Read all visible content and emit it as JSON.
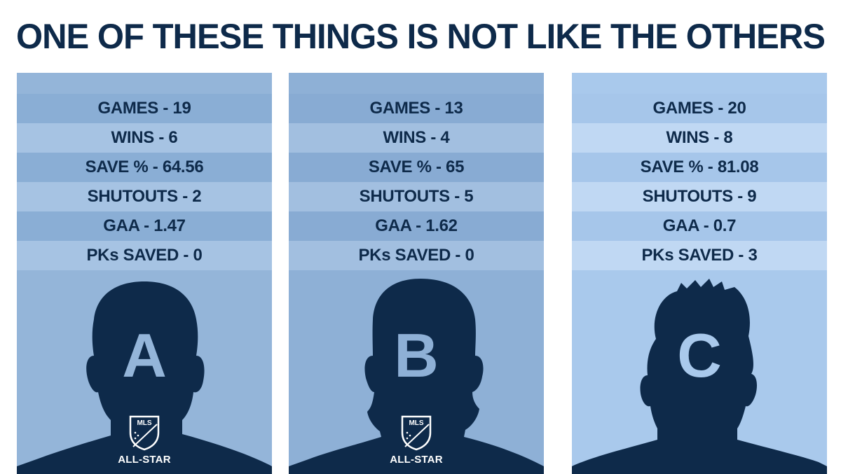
{
  "headline": "ONE OF THESE THINGS IS NOT LIKE THE OTHERS",
  "players": [
    {
      "letter": "A",
      "stats": [
        "GAMES - 19",
        "WINS - 6",
        "SAVE % - 64.56",
        "SHUTOUTS - 2",
        "GAA - 1.47",
        "PKs SAVED - 0"
      ],
      "badge": {
        "logo_text": "MLS",
        "label": "ALL-STAR"
      }
    },
    {
      "letter": "B",
      "stats": [
        "GAMES - 13",
        "WINS - 4",
        "SAVE % - 65",
        "SHUTOUTS - 5",
        "GAA - 1.62",
        "PKs SAVED - 0"
      ],
      "badge": {
        "logo_text": "MLS",
        "label": "ALL-STAR"
      }
    },
    {
      "letter": "C",
      "stats": [
        "GAMES - 20",
        "WINS - 8",
        "SAVE % - 81.08",
        "SHUTOUTS - 9",
        "GAA - 0.7",
        "PKs SAVED - 3"
      ]
    }
  ],
  "colors": {
    "navy": "#0e2a4a",
    "panel_a": "#94b5d9",
    "panel_b": "#8eb0d6",
    "panel_c": "#a9c9ec"
  }
}
